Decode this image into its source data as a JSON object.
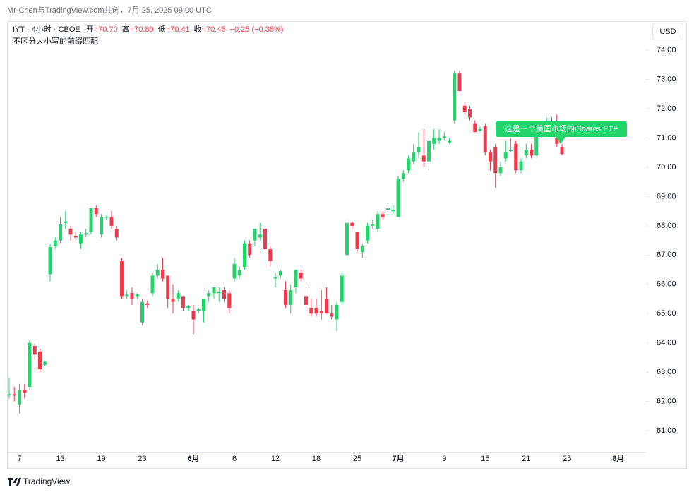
{
  "header": {
    "credit": "Mr-Chen与TradingView.com共创，7月 25, 2025 09:00 UTC"
  },
  "footer": {
    "brand": "TradingView"
  },
  "chart_data": {
    "type": "candlestick",
    "symbol": "IYT · 4小时 · CBOE",
    "legend": [
      {
        "name": "开",
        "text": "=70.70"
      },
      {
        "name": "高",
        "text": "=70.80"
      },
      {
        "name": "低",
        "text": "=70.41"
      },
      {
        "name": "收",
        "text": "=70.45"
      },
      {
        "name": "",
        "text": "−0.25 (−0.35%)"
      }
    ],
    "subtitle": "不区分大小写的前缀匹配",
    "currency": "USD",
    "annotation": "这是一个美国市场的iShares ETF",
    "up_color": "#22d46a",
    "down_color": "#f0394b",
    "ylim": [
      60.28,
      74.99
    ],
    "yticks": [
      {
        "value": 61,
        "label": "61.00"
      },
      {
        "value": 62,
        "label": "62.00"
      },
      {
        "value": 63,
        "label": "63.00"
      },
      {
        "value": 64,
        "label": "64.00"
      },
      {
        "value": 65,
        "label": "65.00"
      },
      {
        "value": 66,
        "label": "66.00"
      },
      {
        "value": 67,
        "label": "67.00"
      },
      {
        "value": 68,
        "label": "68.00"
      },
      {
        "value": 69,
        "label": "69.00"
      },
      {
        "value": 70,
        "label": "70.00"
      },
      {
        "value": 71,
        "label": "71.00"
      },
      {
        "value": 72,
        "label": "72.00"
      },
      {
        "value": 73,
        "label": "73.00"
      },
      {
        "value": 74,
        "label": "74.00"
      }
    ],
    "xticks": [
      {
        "value": 2,
        "label": "7"
      },
      {
        "value": 10,
        "label": "13"
      },
      {
        "value": 18,
        "label": "19"
      },
      {
        "value": 26,
        "label": "23"
      },
      {
        "value": 36,
        "label": "6月"
      },
      {
        "value": 44,
        "label": "6"
      },
      {
        "value": 52,
        "label": "12"
      },
      {
        "value": 60,
        "label": "18"
      },
      {
        "value": 68,
        "label": "25"
      },
      {
        "value": 76,
        "label": "7月"
      },
      {
        "value": 85,
        "label": "9"
      },
      {
        "value": 93,
        "label": "15"
      },
      {
        "value": 101,
        "label": "21"
      },
      {
        "value": 109,
        "label": "25"
      },
      {
        "value": 119,
        "label": "8月"
      }
    ],
    "open": [
      62.2,
      62.25,
      61.9,
      62.4,
      62.5,
      63.9,
      63.7,
      63.25,
      66.35,
      67.3,
      67.5,
      68.1,
      67.9,
      67.65,
      67.4,
      67.7,
      67.8,
      68.6,
      67.7,
      68.3,
      68.3,
      67.9,
      66.8,
      65.6,
      65.7,
      65.6,
      64.7,
      65.35,
      65.7,
      66.3,
      66.5,
      66.3,
      65.5,
      65.5,
      65.6,
      65.2,
      65.1,
      65.1,
      65.1,
      65.6,
      65.7,
      65.7,
      65.8,
      65.7,
      66.2,
      66.3,
      66.6,
      67.4,
      67.5,
      67.6,
      67.9,
      67.2,
      66.2,
      66.3,
      65.8,
      65.3,
      65.9,
      66.4,
      65.6,
      65.2,
      65.2,
      65.1,
      65.5,
      65.0,
      64.8,
      65.4,
      67.0,
      68.1,
      67.8,
      67.1,
      67.5,
      68.0,
      67.9,
      68.4,
      68.55,
      68.5,
      68.3,
      69.6,
      69.9,
      70.2,
      70.5,
      70.4,
      70.2,
      70.8,
      70.9,
      71.0,
      70.85,
      71.6,
      73.2,
      72.1,
      72.0,
      71.5,
      71.25,
      71.4,
      70.5,
      70.7,
      69.8,
      70.3,
      70.55,
      70.8,
      69.9,
      70.4,
      70.6,
      70.4,
      71.15,
      71.45,
      71.5,
      71.0,
      70.7
    ],
    "high": [
      62.8,
      62.5,
      62.6,
      62.6,
      64.1,
      64.0,
      63.8,
      63.4,
      67.4,
      67.6,
      68.3,
      68.5,
      68.0,
      67.8,
      67.8,
      67.9,
      68.6,
      68.7,
      68.4,
      68.35,
      68.5,
      68.0,
      66.9,
      65.8,
      65.9,
      65.7,
      65.5,
      65.45,
      66.4,
      66.7,
      66.9,
      66.3,
      66.0,
      65.8,
      65.6,
      65.3,
      65.3,
      65.2,
      65.5,
      65.8,
      65.9,
      65.9,
      65.9,
      65.8,
      66.9,
      66.6,
      67.5,
      67.5,
      67.9,
      68.1,
      68.1,
      67.3,
      66.4,
      66.5,
      66.1,
      66.0,
      66.5,
      66.5,
      65.9,
      65.5,
      65.5,
      65.8,
      65.9,
      65.3,
      65.4,
      66.4,
      68.2,
      68.15,
      67.8,
      67.4,
      68.1,
      68.2,
      68.5,
      68.5,
      68.7,
      68.7,
      69.7,
      69.9,
      70.4,
      70.8,
      71.2,
      71.3,
      71.0,
      71.3,
      71.3,
      71.2,
      71.0,
      73.3,
      73.3,
      72.2,
      72.1,
      71.6,
      71.4,
      71.5,
      70.6,
      70.8,
      70.2,
      70.9,
      71.0,
      70.9,
      70.3,
      70.8,
      70.8,
      71.2,
      71.3,
      71.7,
      71.7,
      71.8,
      70.8
    ],
    "low": [
      62.1,
      62.0,
      61.6,
      62.1,
      62.4,
      63.4,
      63.0,
      63.2,
      66.1,
      67.2,
      67.4,
      67.9,
      67.5,
      67.5,
      67.2,
      67.6,
      67.7,
      68.3,
      67.6,
      68.2,
      67.9,
      67.5,
      65.5,
      65.5,
      65.3,
      65.5,
      64.6,
      65.2,
      65.6,
      66.2,
      66.1,
      65.2,
      65.0,
      65.4,
      65.1,
      65.1,
      64.3,
      65.0,
      64.7,
      65.4,
      65.5,
      65.4,
      65.4,
      65.0,
      66.1,
      66.2,
      66.5,
      66.9,
      67.3,
      67.5,
      67.1,
      66.6,
      65.9,
      66.2,
      65.2,
      65.0,
      65.7,
      66.1,
      65.2,
      64.9,
      64.9,
      64.8,
      65.0,
      64.8,
      64.4,
      65.3,
      67.0,
      67.9,
      67.1,
      66.9,
      67.4,
      67.9,
      67.8,
      68.2,
      68.4,
      68.4,
      68.3,
      69.5,
      69.8,
      70.1,
      70.3,
      70.0,
      69.9,
      70.6,
      70.8,
      70.9,
      70.8,
      71.5,
      72.6,
      71.8,
      71.6,
      71.2,
      71.2,
      70.4,
      69.9,
      69.3,
      69.7,
      70.2,
      70.5,
      69.8,
      69.8,
      70.3,
      70.3,
      70.4,
      71.0,
      71.3,
      71.2,
      70.7,
      70.41
    ],
    "close": [
      62.25,
      62.2,
      62.4,
      62.3,
      64.0,
      63.6,
      63.1,
      63.35,
      67.27,
      67.5,
      68.05,
      68.15,
      67.7,
      67.6,
      67.7,
      67.75,
      68.6,
      68.4,
      68.3,
      68.3,
      68.0,
      67.6,
      65.6,
      65.65,
      65.5,
      65.65,
      65.4,
      65.3,
      66.3,
      66.5,
      66.2,
      65.5,
      65.4,
      65.7,
      65.2,
      65.25,
      64.8,
      65.15,
      65.5,
      65.7,
      65.9,
      65.75,
      65.5,
      65.2,
      66.7,
      66.5,
      67.4,
      67.0,
      67.9,
      67.7,
      67.2,
      66.8,
      66.25,
      66.45,
      65.3,
      65.8,
      66.5,
      66.2,
      65.3,
      65.0,
      65.0,
      65.0,
      65.0,
      64.9,
      65.3,
      66.3,
      68.1,
      68.0,
      67.2,
      67.3,
      68.0,
      68.05,
      68.4,
      68.3,
      68.6,
      68.55,
      69.6,
      69.8,
      70.3,
      70.5,
      70.7,
      70.2,
      70.9,
      71.0,
      71.0,
      71.05,
      70.9,
      73.2,
      72.6,
      71.9,
      71.7,
      71.2,
      71.3,
      70.5,
      70.2,
      69.8,
      70.0,
      70.5,
      70.6,
      69.9,
      70.2,
      70.6,
      70.4,
      71.1,
      71.2,
      71.5,
      71.3,
      70.8,
      70.45
    ]
  }
}
